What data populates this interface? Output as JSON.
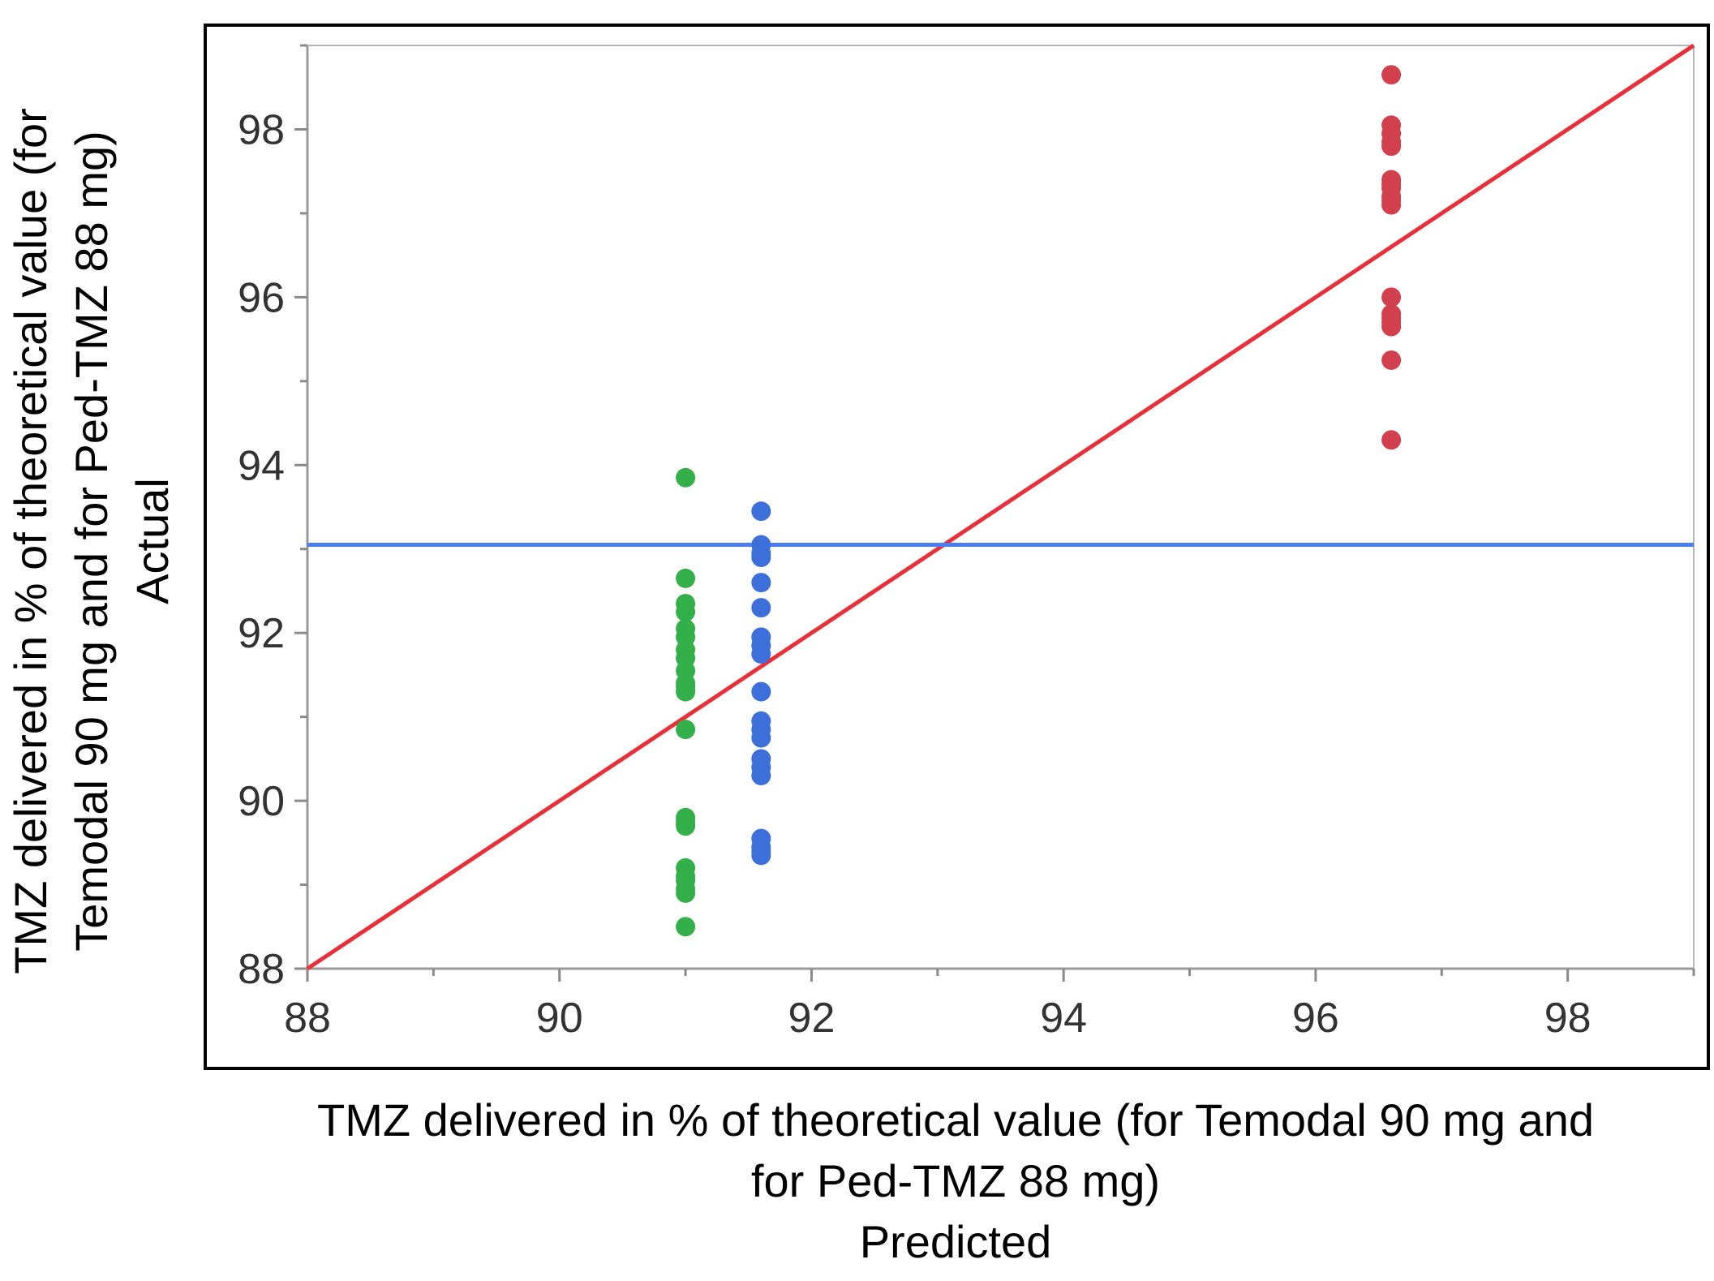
{
  "chart_data": {
    "type": "scatter",
    "xlabel": [
      "TMZ delivered in % of theoretical value (for Temodal 90 mg and",
      "for Ped-TMZ 88 mg)",
      "Predicted"
    ],
    "ylabel": [
      "TMZ delivered in % of theoretical value (for",
      "Temodal 90 mg and for Ped-TMZ 88 mg)",
      "Actual"
    ],
    "xlim": [
      88,
      99
    ],
    "ylim": [
      88,
      99
    ],
    "x_ticks": [
      "88",
      "90",
      "92",
      "94",
      "96",
      "98"
    ],
    "y_ticks": [
      "88",
      "90",
      "92",
      "94",
      "96",
      "98"
    ],
    "grid": false,
    "reference_lines": [
      {
        "kind": "identity",
        "color": "#e8303a"
      },
      {
        "kind": "horizontal",
        "y": 93.05,
        "color": "#4a7df0"
      }
    ],
    "series": [
      {
        "color": "#33b04a",
        "x": [
          91.0,
          91.0,
          91.0,
          91.0,
          91.0,
          91.0,
          91.0,
          91.0,
          91.0,
          91.0,
          91.0,
          91.0,
          91.0,
          91.0,
          91.0,
          91.0,
          91.0,
          91.0,
          91.0,
          91.0,
          91.0,
          91.0
        ],
        "y": [
          93.85,
          92.65,
          92.35,
          92.25,
          92.05,
          91.95,
          91.8,
          91.7,
          91.55,
          91.4,
          91.35,
          91.3,
          90.85,
          89.8,
          89.75,
          89.7,
          89.2,
          89.1,
          89.05,
          88.95,
          88.9,
          88.5
        ]
      },
      {
        "color": "#3d6fdb",
        "x": [
          91.6,
          91.6,
          91.6,
          91.6,
          91.6,
          91.6,
          91.6,
          91.6,
          91.6,
          91.6,
          91.6,
          91.6,
          91.6,
          91.6,
          91.6,
          91.6,
          91.6,
          91.6,
          91.6,
          91.6
        ],
        "y": [
          93.45,
          93.05,
          92.95,
          92.9,
          92.6,
          92.3,
          91.95,
          91.85,
          91.75,
          91.3,
          90.95,
          90.85,
          90.75,
          90.5,
          90.4,
          90.3,
          89.55,
          89.45,
          89.4,
          89.35
        ]
      },
      {
        "color": "#d2404e",
        "x": [
          96.6,
          96.6,
          96.6,
          96.6,
          96.6,
          96.6,
          96.6,
          96.6,
          96.6,
          96.6,
          96.6,
          96.6,
          96.6,
          96.6,
          96.6,
          96.6,
          96.6,
          96.6
        ],
        "y": [
          98.65,
          98.05,
          97.95,
          97.85,
          97.8,
          97.4,
          97.35,
          97.3,
          97.2,
          97.15,
          97.1,
          96.0,
          95.8,
          95.75,
          95.7,
          95.65,
          95.25,
          94.3
        ]
      }
    ]
  }
}
